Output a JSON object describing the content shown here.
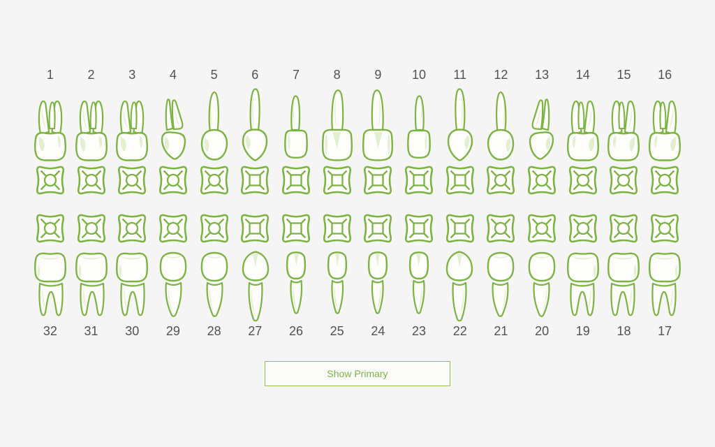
{
  "page": {
    "background_color": "#f5f5f5"
  },
  "colors": {
    "tooth_outline_green": "#7cb342",
    "tooth_fill": "#fdfdfb",
    "tooth_accent_green": "#e2efd2",
    "number_gray": "#515254",
    "button_border_green": "#8bc34a",
    "button_text_green": "#7cb342"
  },
  "chart": {
    "upper_numbers": [
      "1",
      "2",
      "3",
      "4",
      "5",
      "6",
      "7",
      "8",
      "9",
      "10",
      "11",
      "12",
      "13",
      "14",
      "15",
      "16"
    ],
    "lower_numbers": [
      "32",
      "31",
      "30",
      "29",
      "28",
      "27",
      "26",
      "25",
      "24",
      "23",
      "22",
      "21",
      "20",
      "19",
      "18",
      "17"
    ],
    "columns": [
      {
        "upper_number": "1",
        "lower_number": "32",
        "upper_type": "molar-upper",
        "lower_type": "molar-lower",
        "occlusal": "occ-round"
      },
      {
        "upper_number": "2",
        "lower_number": "31",
        "upper_type": "molar-upper",
        "lower_type": "molar-lower",
        "occlusal": "occ-round"
      },
      {
        "upper_number": "3",
        "lower_number": "30",
        "upper_type": "molar-upper",
        "lower_type": "molar-lower",
        "occlusal": "occ-round"
      },
      {
        "upper_number": "4",
        "lower_number": "29",
        "upper_type": "premolar2-upper",
        "lower_type": "premolar-lower",
        "occlusal": "occ-round"
      },
      {
        "upper_number": "5",
        "lower_number": "28",
        "upper_type": "premolar-upper",
        "lower_type": "premolar-lower",
        "occlusal": "occ-round"
      },
      {
        "upper_number": "6",
        "lower_number": "27",
        "upper_type": "canine-upper",
        "lower_type": "canine-lower",
        "occlusal": "occ-square"
      },
      {
        "upper_number": "7",
        "lower_number": "26",
        "upper_type": "incisor-lateral-upper",
        "lower_type": "incisor-lower",
        "occlusal": "occ-square"
      },
      {
        "upper_number": "8",
        "lower_number": "25",
        "upper_type": "incisor-central-upper",
        "lower_type": "incisor-lower",
        "occlusal": "occ-square"
      },
      {
        "upper_number": "9",
        "lower_number": "24",
        "upper_type": "incisor-central-upper",
        "lower_type": "incisor-lower",
        "occlusal": "occ-square"
      },
      {
        "upper_number": "10",
        "lower_number": "23",
        "upper_type": "incisor-lateral-upper",
        "lower_type": "incisor-lower",
        "occlusal": "occ-square"
      },
      {
        "upper_number": "11",
        "lower_number": "22",
        "upper_type": "canine-upper",
        "lower_type": "canine-lower",
        "occlusal": "occ-square"
      },
      {
        "upper_number": "12",
        "lower_number": "21",
        "upper_type": "premolar-upper",
        "lower_type": "premolar-lower",
        "occlusal": "occ-round"
      },
      {
        "upper_number": "13",
        "lower_number": "20",
        "upper_type": "premolar2-upper",
        "lower_type": "premolar-lower",
        "occlusal": "occ-round"
      },
      {
        "upper_number": "14",
        "lower_number": "19",
        "upper_type": "molar-upper",
        "lower_type": "molar-lower",
        "occlusal": "occ-round"
      },
      {
        "upper_number": "15",
        "lower_number": "18",
        "upper_type": "molar-upper",
        "lower_type": "molar-lower",
        "occlusal": "occ-round"
      },
      {
        "upper_number": "16",
        "lower_number": "17",
        "upper_type": "molar-upper",
        "lower_type": "molar-lower",
        "occlusal": "occ-round"
      }
    ]
  },
  "actions": {
    "show_primary_label": "Show Primary"
  }
}
